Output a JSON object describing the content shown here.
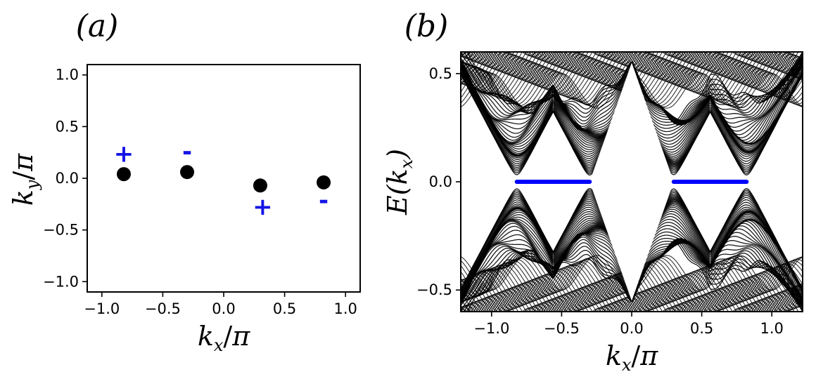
{
  "chart_data": [
    {
      "type": "scatter",
      "panel_label": "(a)",
      "xlabel": "k_x/π",
      "ylabel": "k_y/π",
      "xlim": [
        -1.12,
        1.12
      ],
      "ylim": [
        -1.1,
        1.1
      ],
      "xticks": [
        -1.0,
        -0.5,
        0.0,
        0.5,
        1.0
      ],
      "xtick_labels": [
        "−1.0",
        "−0.5",
        "0.0",
        "0.5",
        "1.0"
      ],
      "yticks": [
        -1.0,
        -0.5,
        0.0,
        0.5,
        1.0
      ],
      "ytick_labels": [
        "−1.0",
        "−0.5",
        "0.0",
        "0.5",
        "1.0"
      ],
      "grid": false,
      "colors": {
        "points": "#000000",
        "signs": "#1414e6"
      },
      "points": [
        {
          "x": -0.82,
          "y": 0.04
        },
        {
          "x": -0.3,
          "y": 0.06
        },
        {
          "x": 0.3,
          "y": -0.07
        },
        {
          "x": 0.82,
          "y": -0.04
        }
      ],
      "annotations": [
        {
          "text": "+",
          "x": -0.82,
          "y": 0.24
        },
        {
          "text": "-",
          "x": -0.3,
          "y": 0.26
        },
        {
          "text": "+",
          "x": 0.32,
          "y": -0.27
        },
        {
          "text": "-",
          "x": 0.82,
          "y": -0.21
        }
      ]
    },
    {
      "type": "line",
      "panel_label": "(b)",
      "xlabel": "k_x/π",
      "ylabel": "E(k_x)",
      "xlim": [
        -1.22,
        1.22
      ],
      "ylim": [
        -0.6,
        0.6
      ],
      "xticks": [
        -1.0,
        -0.5,
        0.0,
        0.5,
        1.0
      ],
      "xtick_labels": [
        "−1.0",
        "−0.5",
        "0.0",
        "0.5",
        "1.0"
      ],
      "yticks": [
        -0.5,
        0.0,
        0.5
      ],
      "ytick_labels": [
        "−0.5",
        "0.0",
        "0.5"
      ],
      "grid": false,
      "colors": {
        "bulk_bands": "#000000",
        "edge_states": "#0000ff"
      },
      "bulk_band_count": 42,
      "edge_states": [
        {
          "x_start": -0.82,
          "x_end": -0.3,
          "y": 0.0
        },
        {
          "x_start": 0.3,
          "x_end": 0.82,
          "y": 0.0
        }
      ]
    }
  ]
}
